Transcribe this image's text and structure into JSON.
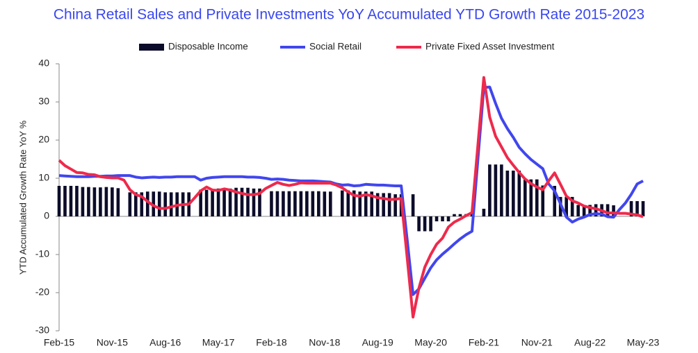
{
  "chart_data": {
    "type": "bar_line",
    "title": "China Retail Sales and Private Investments YoY Accumulated YTD Growth Rate 2015-2023",
    "y_label": "YTD Accumulated Growth Rate YoY %",
    "categories": [
      "Feb-15",
      null,
      null,
      null,
      null,
      null,
      null,
      null,
      null,
      "Nov-15",
      null,
      null,
      null,
      null,
      null,
      null,
      null,
      null,
      "Aug-16",
      null,
      null,
      null,
      null,
      null,
      null,
      null,
      null,
      "May-17",
      null,
      null,
      null,
      null,
      null,
      null,
      null,
      null,
      "Feb-18",
      null,
      null,
      null,
      null,
      null,
      null,
      null,
      null,
      "Nov-18",
      null,
      null,
      null,
      null,
      null,
      null,
      null,
      null,
      "Aug-19",
      null,
      null,
      null,
      null,
      null,
      null,
      null,
      null,
      "May-20",
      null,
      null,
      null,
      null,
      null,
      null,
      null,
      null,
      "Feb-21",
      null,
      null,
      null,
      null,
      null,
      null,
      null,
      null,
      "Nov-21",
      null,
      null,
      null,
      null,
      null,
      null,
      null,
      null,
      "Aug-22",
      null,
      null,
      null,
      null,
      null,
      null,
      null,
      null,
      "May-23"
    ],
    "series": [
      {
        "name": "Disposable Income",
        "kind": "bar",
        "color": "#0c0c2a",
        "values": [
          8.0,
          8.0,
          8.0,
          8.0,
          7.7,
          7.7,
          7.6,
          7.6,
          7.7,
          7.6,
          7.4,
          null,
          6.3,
          6.3,
          6.3,
          6.5,
          6.5,
          6.5,
          6.3,
          6.3,
          6.3,
          6.3,
          6.3,
          null,
          7.0,
          7.0,
          7.0,
          7.3,
          7.3,
          7.3,
          7.5,
          7.5,
          7.5,
          7.3,
          7.3,
          null,
          6.6,
          6.6,
          6.6,
          6.6,
          6.6,
          6.6,
          6.6,
          6.6,
          6.6,
          6.5,
          6.5,
          null,
          6.8,
          6.8,
          6.8,
          6.5,
          6.5,
          6.5,
          6.1,
          6.1,
          6.1,
          5.8,
          5.8,
          null,
          5.8,
          -3.9,
          -3.9,
          -3.9,
          -1.3,
          -1.3,
          -1.3,
          0.6,
          0.6,
          0.6,
          0.6,
          null,
          2.0,
          13.6,
          13.6,
          13.6,
          12.0,
          12.0,
          12.0,
          9.7,
          9.7,
          9.7,
          8.1,
          null,
          8.0,
          5.1,
          5.1,
          5.1,
          3.0,
          3.0,
          3.0,
          3.2,
          3.2,
          3.2,
          2.9,
          null,
          null,
          4.0,
          4.0,
          4.0
        ]
      },
      {
        "name": "Social Retail",
        "kind": "line",
        "color": "#4146ee",
        "values": [
          10.7,
          10.6,
          10.5,
          10.4,
          10.4,
          10.4,
          10.5,
          10.5,
          10.6,
          10.6,
          10.7,
          10.7,
          10.7,
          10.3,
          10.1,
          10.2,
          10.3,
          10.2,
          10.3,
          10.3,
          10.4,
          10.4,
          10.4,
          10.4,
          9.5,
          10.0,
          10.2,
          10.3,
          10.4,
          10.4,
          10.4,
          10.4,
          10.3,
          10.3,
          10.2,
          10.0,
          9.7,
          9.8,
          9.7,
          9.5,
          9.4,
          9.3,
          9.3,
          9.3,
          9.2,
          9.1,
          9.0,
          8.5,
          8.2,
          8.3,
          8.0,
          8.1,
          8.4,
          8.3,
          8.2,
          8.2,
          8.1,
          8.0,
          8.0,
          -6.0,
          -20.5,
          -19.0,
          -16.2,
          -13.5,
          -11.4,
          -9.9,
          -8.6,
          -7.2,
          -5.9,
          -4.8,
          -3.9,
          15.0,
          33.8,
          33.9,
          29.6,
          25.7,
          23.0,
          20.7,
          18.1,
          16.4,
          14.9,
          13.7,
          12.5,
          8.5,
          6.7,
          3.3,
          -0.2,
          -1.5,
          -0.7,
          -0.2,
          0.5,
          0.7,
          0.6,
          -0.1,
          -0.2,
          1.8,
          3.5,
          5.8,
          8.5,
          9.3
        ]
      },
      {
        "name": "Private Fixed Asset Investment",
        "kind": "line",
        "color": "#ee2a4c",
        "values": [
          14.7,
          13.3,
          12.4,
          11.5,
          11.4,
          11.0,
          10.9,
          10.4,
          10.2,
          10.1,
          10.1,
          9.5,
          7.0,
          5.7,
          5.2,
          3.9,
          2.8,
          2.1,
          2.1,
          2.5,
          2.9,
          3.1,
          3.2,
          4.9,
          6.7,
          7.7,
          6.9,
          6.8,
          7.2,
          6.9,
          6.4,
          6.0,
          5.7,
          5.7,
          6.0,
          7.3,
          8.1,
          8.9,
          8.4,
          8.1,
          8.4,
          8.8,
          8.7,
          8.7,
          8.7,
          8.7,
          8.7,
          8.2,
          7.5,
          6.4,
          5.5,
          5.3,
          5.7,
          5.4,
          4.9,
          4.7,
          4.4,
          4.5,
          4.7,
          -10.7,
          -26.4,
          -18.8,
          -13.3,
          -10.0,
          -7.3,
          -5.7,
          -2.8,
          -1.5,
          -0.7,
          0.2,
          1.0,
          18.7,
          36.4,
          26.0,
          21.0,
          18.2,
          15.4,
          13.4,
          11.5,
          9.8,
          8.6,
          7.7,
          7.0,
          9.3,
          11.4,
          8.4,
          5.3,
          4.1,
          3.5,
          2.7,
          2.3,
          2.0,
          1.5,
          0.9,
          0.9,
          0.8,
          0.8,
          0.6,
          0.4,
          -0.1
        ]
      }
    ],
    "ylim": [
      -30,
      40
    ],
    "yticks": [
      -30,
      -20,
      -10,
      0,
      10,
      20,
      30,
      40
    ],
    "grid": false,
    "legend": "top"
  }
}
